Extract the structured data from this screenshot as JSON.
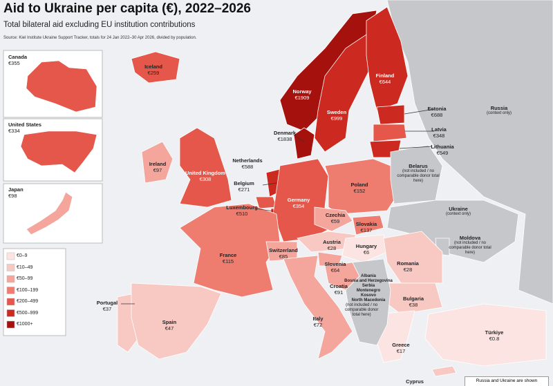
{
  "header": {
    "title": "Aid to Ukraine per capita (€), 2022–2026",
    "subtitle": "Total bilateral aid excluding EU institution contributions",
    "source": "Source: Kiel Institute Ukraine Support Tracker, totals for 24 Jan 2022–30 Apr 2026, divided by population."
  },
  "insets": [
    {
      "name": "Canada",
      "value": "€355"
    },
    {
      "name": "United States",
      "value": "€334"
    },
    {
      "name": "Japan",
      "value": "€98"
    }
  ],
  "legend": [
    {
      "label": "€0–9",
      "color": "#fbe4e1"
    },
    {
      "label": "€10–49",
      "color": "#f8c9c3"
    },
    {
      "label": "€50–99",
      "color": "#f4a69d"
    },
    {
      "label": "€100–199",
      "color": "#ee7d70"
    },
    {
      "label": "€200–499",
      "color": "#e4574a"
    },
    {
      "label": "€500–999",
      "color": "#cc2a20"
    },
    {
      "label": "€1000+",
      "color": "#a5120e"
    }
  ],
  "countries": [
    {
      "name": "Iceland",
      "value": "€259"
    },
    {
      "name": "Norway",
      "value": "€1909"
    },
    {
      "name": "Sweden",
      "value": "€999"
    },
    {
      "name": "Finland",
      "value": "€644"
    },
    {
      "name": "Estonia",
      "value": "€688"
    },
    {
      "name": "Latvia",
      "value": "€348"
    },
    {
      "name": "Lithuania",
      "value": "€549"
    },
    {
      "name": "Denmark",
      "value": "€1838"
    },
    {
      "name": "Russia",
      "value": "(context only)"
    },
    {
      "name": "Ireland",
      "value": "€97"
    },
    {
      "name": "United Kingdom",
      "value": "€308"
    },
    {
      "name": "Netherlands",
      "value": "€588"
    },
    {
      "name": "Belgium",
      "value": "€271"
    },
    {
      "name": "Luxembourg",
      "value": "€510"
    },
    {
      "name": "Germany",
      "value": "€354"
    },
    {
      "name": "Poland",
      "value": "€152"
    },
    {
      "name": "Belarus",
      "value": "(not included / no comparable donor total here)"
    },
    {
      "name": "Czechia",
      "value": "€59"
    },
    {
      "name": "Slovakia",
      "value": "€137"
    },
    {
      "name": "Ukraine",
      "value": "(context only)"
    },
    {
      "name": "Austria",
      "value": "€28"
    },
    {
      "name": "Hungary",
      "value": "€6"
    },
    {
      "name": "Moldova",
      "value": "(not included / no comparable donor total here)"
    },
    {
      "name": "France",
      "value": "€115"
    },
    {
      "name": "Switzerland",
      "value": "€85"
    },
    {
      "name": "Slovenia",
      "value": "€64"
    },
    {
      "name": "Croatia",
      "value": "€91"
    },
    {
      "name": "Romania",
      "value": "€28"
    },
    {
      "name": "Bulgaria",
      "value": "€38"
    },
    {
      "name": "Portugal",
      "value": "€37"
    },
    {
      "name": "Spain",
      "value": "€47"
    },
    {
      "name": "Italy",
      "value": "€72"
    },
    {
      "name": "Greece",
      "value": "€17"
    },
    {
      "name": "Türkiye",
      "value": "€0.8"
    },
    {
      "name": "Cyprus"
    }
  ],
  "balkans": {
    "names": [
      "Albania",
      "Bosnia and Herzegovina",
      "Serbia",
      "Montenegro",
      "Kosovo",
      "North Macedonia"
    ],
    "note": "(not included / no comparable donor total here)"
  },
  "note": "Russia and Ukraine are shown"
}
